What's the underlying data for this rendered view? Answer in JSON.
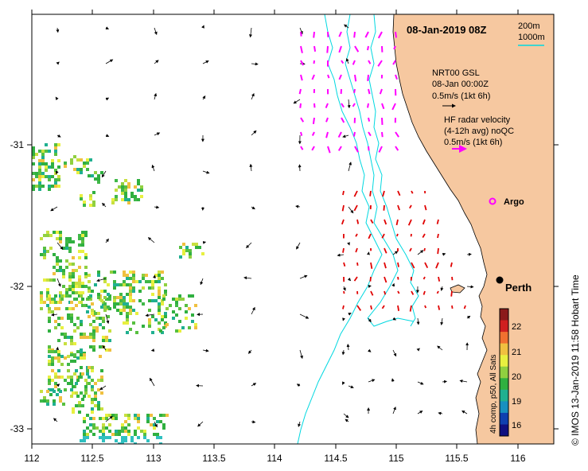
{
  "map": {
    "title": "08-Jan-2019 08Z",
    "credit": "© IMOS 13-Jan-2019 11:58 Hobart Time",
    "land_color": "#f6c8a0",
    "sea_color": "#ffffff",
    "isobath_color": "#00d8e0",
    "isobath_legend": [
      "200m",
      "1000m"
    ],
    "x_ticks": [
      "112",
      "112.5",
      "113",
      "113.5",
      "114",
      "114.5",
      "115",
      "115.5",
      "116"
    ],
    "y_ticks": [
      "-31",
      "-32",
      "-33"
    ]
  },
  "legend": {
    "model_lines": [
      "NRT00 GSL",
      "08-Jan 00:00Z",
      "0.5m/s (1kt 6h)"
    ],
    "radar_lines": [
      "HF radar velocity",
      "(4-12h avg) noQC",
      "0.5m/s (1kt 6h)"
    ],
    "argo_label": "Argo",
    "argo_color": "#ff00ff",
    "radar_color": "#ff00ff"
  },
  "city": {
    "label": "Perth"
  },
  "colorbar": {
    "title": "4h comp, p50, All Sats",
    "labels": [
      "22",
      "21",
      "20",
      "19",
      "16"
    ],
    "colors": [
      "#8b1a1a",
      "#d02020",
      "#f07030",
      "#f0c040",
      "#e8f040",
      "#90d040",
      "#30b040",
      "#20b090",
      "#1890c0",
      "#1040b0",
      "#101080"
    ]
  }
}
